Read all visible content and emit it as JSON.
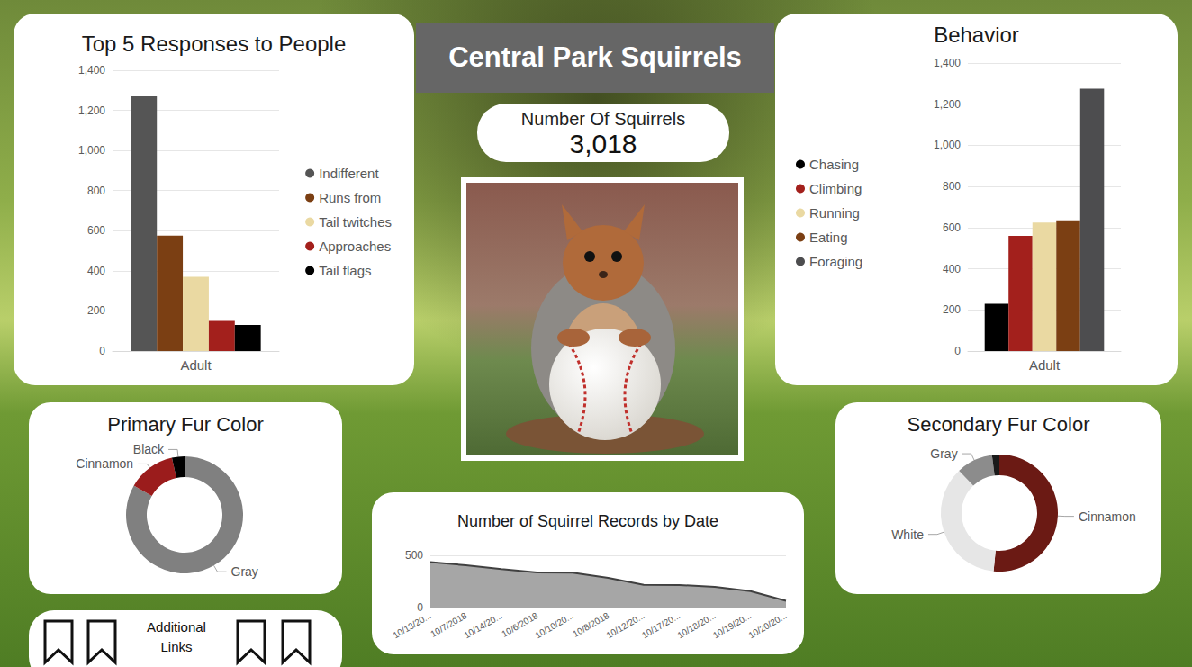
{
  "header": {
    "title": "Central Park Squirrels"
  },
  "kpi": {
    "label": "Number Of Squirrels",
    "value": "3,018"
  },
  "links": {
    "label": "Additional Links"
  },
  "chart_data": [
    {
      "type": "bar",
      "title": "Top 5 Responses to People",
      "categories": [
        "Adult"
      ],
      "series": [
        {
          "name": "Indifferent",
          "color": "#555555",
          "values": [
            1270
          ]
        },
        {
          "name": "Runs from",
          "color": "#7b3f13",
          "values": [
            575
          ]
        },
        {
          "name": "Tail twitches",
          "color": "#ead9a2",
          "values": [
            370
          ]
        },
        {
          "name": "Approaches",
          "color": "#a3201c",
          "values": [
            150
          ]
        },
        {
          "name": "Tail flags",
          "color": "#000000",
          "values": [
            130
          ]
        }
      ],
      "ylim": [
        0,
        1400
      ],
      "yticks": [
        0,
        200,
        400,
        600,
        800,
        {
          "value": 1000,
          "label": "1,000"
        },
        {
          "value": 1200,
          "label": "1,200"
        },
        {
          "value": 1400,
          "label": "1,400"
        }
      ],
      "grid": true,
      "legend": "right"
    },
    {
      "type": "bar",
      "title": "Behavior",
      "categories": [
        "Adult"
      ],
      "series": [
        {
          "name": "Chasing",
          "color": "#000000",
          "values": [
            230
          ]
        },
        {
          "name": "Climbing",
          "color": "#a3201c",
          "values": [
            560
          ]
        },
        {
          "name": "Running",
          "color": "#ead9a2",
          "values": [
            625
          ]
        },
        {
          "name": "Eating",
          "color": "#7b3f13",
          "values": [
            635
          ]
        },
        {
          "name": "Foraging",
          "color": "#4d4d4f",
          "values": [
            1275
          ]
        }
      ],
      "ylim": [
        0,
        1400
      ],
      "yticks": [
        0,
        200,
        400,
        600,
        800,
        {
          "value": 1000,
          "label": "1,000"
        },
        {
          "value": 1200,
          "label": "1,200"
        },
        {
          "value": 1400,
          "label": "1,400"
        }
      ],
      "grid": true,
      "legend": "left"
    },
    {
      "type": "pie",
      "title": "Primary Fur Color",
      "categories": [
        "Gray",
        "Cinnamon",
        "Black"
      ],
      "values": [
        2473,
        392,
        103
      ],
      "colors": [
        "#808080",
        "#9b1c1c",
        "#000000"
      ]
    },
    {
      "type": "pie",
      "title": "Secondary Fur Color",
      "categories": [
        "Cinnamon",
        "White",
        "Gray",
        null
      ],
      "values": [
        767,
        540,
        150,
        30
      ],
      "colors": [
        "#6b1a14",
        "#e6e6e6",
        "#8c8c8c",
        "#1a1a1a"
      ]
    },
    {
      "type": "area",
      "title": "Number of Squirrel Records by Date",
      "categories": [
        "10/13/20...",
        "10/7/2018",
        "10/14/20...",
        "10/6/2018",
        "10/10/20...",
        "10/8/2018",
        "10/12/20...",
        "10/17/20...",
        "10/18/20...",
        "10/19/20...",
        "10/20/20..."
      ],
      "values": [
        435,
        405,
        368,
        337,
        335,
        285,
        218,
        216,
        199,
        158,
        65
      ],
      "color": "#a6a6a6",
      "ylim": [
        0,
        500
      ],
      "yticks": [
        0,
        500
      ],
      "grid": true
    }
  ]
}
